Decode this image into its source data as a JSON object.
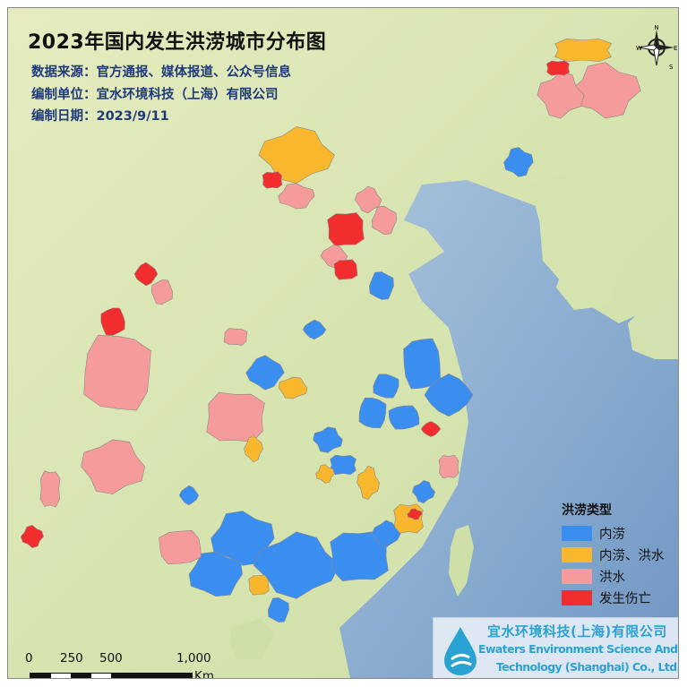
{
  "title": "2023年国内发生洪涝城市分布图",
  "info": {
    "source": "数据来源：官方通报、媒体报道、公众号信息",
    "org": "编制单位：宜水环境科技（上海）有限公司",
    "date": "编制日期：2023/9/11"
  },
  "legend": {
    "title": "洪涝类型",
    "items": [
      {
        "label": "内涝",
        "color": "#3a8ef0"
      },
      {
        "label": "内涝、洪水",
        "color": "#f9b72e"
      },
      {
        "label": "洪水",
        "color": "#f59b9b"
      },
      {
        "label": "发生伤亡",
        "color": "#f22d2d"
      }
    ]
  },
  "logo": {
    "cn": "宜水环境科技(上海)有限公司",
    "en_line1": "Ewaters Environment Science And",
    "en_line2": "Technology (Shanghai) Co., Ltd."
  },
  "scale_bar": {
    "ticks": [
      "0",
      "250",
      "500",
      "1,000"
    ],
    "unit": "Km"
  },
  "compass": {
    "n": "N",
    "s": "S",
    "e": "E",
    "w": "W"
  },
  "colors": {
    "land": "#dfe8b8",
    "sea": "#9db8d6"
  }
}
